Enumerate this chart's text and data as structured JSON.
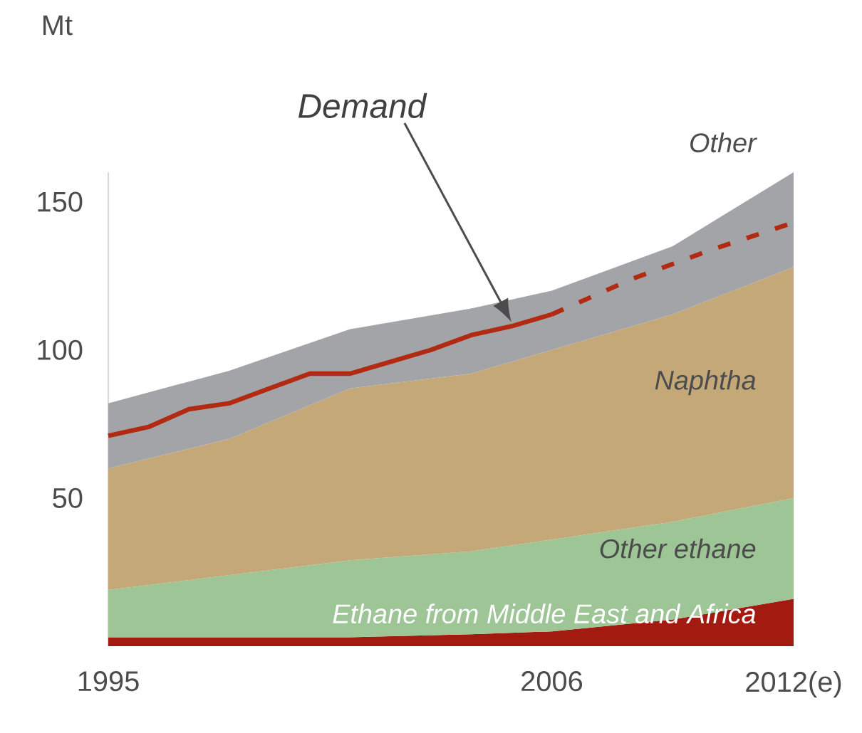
{
  "chart_data": {
    "type": "area",
    "stacked": true,
    "ylabel": "Mt",
    "x": [
      1995,
      1998,
      2001,
      2004,
      2006,
      2009,
      2012
    ],
    "xlim": [
      1995,
      2012
    ],
    "ylim": [
      0,
      160
    ],
    "annotations": [
      "Demand"
    ],
    "xticks": [
      1995,
      2006,
      {
        "value": 2012,
        "label": "2012(e)"
      }
    ],
    "yticks": [
      50,
      100,
      150
    ],
    "grid": false,
    "marker": "none",
    "series": [
      {
        "name": "Ethane from Middle East and Africa",
        "color": "#a31a10",
        "values": [
          3,
          3,
          3,
          4,
          5,
          9,
          16
        ]
      },
      {
        "name": "Other ethane",
        "color": "#9dc596",
        "values": [
          16,
          21,
          26,
          28,
          31,
          33,
          34
        ]
      },
      {
        "name": "Naphtha",
        "color": "#c4a878",
        "values": [
          41,
          46,
          58,
          60,
          64,
          70,
          78
        ]
      },
      {
        "name": "Other",
        "color": "#a3a4a8",
        "values": [
          22,
          23,
          20,
          22,
          20,
          23,
          32
        ]
      },
      {
        "type": "line",
        "line_style": "solid",
        "color": "#b22a12",
        "x": [
          1995,
          1996,
          1997,
          1998,
          1999,
          2000,
          2001,
          2002,
          2003,
          2004,
          2005,
          2006
        ],
        "values": [
          71,
          74,
          80,
          82,
          87,
          92,
          92,
          96,
          100,
          105,
          108,
          112
        ]
      },
      {
        "type": "line",
        "line_style": "dashed",
        "color": "#b22a12",
        "x": [
          2006,
          2008,
          2010,
          2012
        ],
        "values": [
          112,
          124,
          134,
          143
        ]
      }
    ]
  }
}
